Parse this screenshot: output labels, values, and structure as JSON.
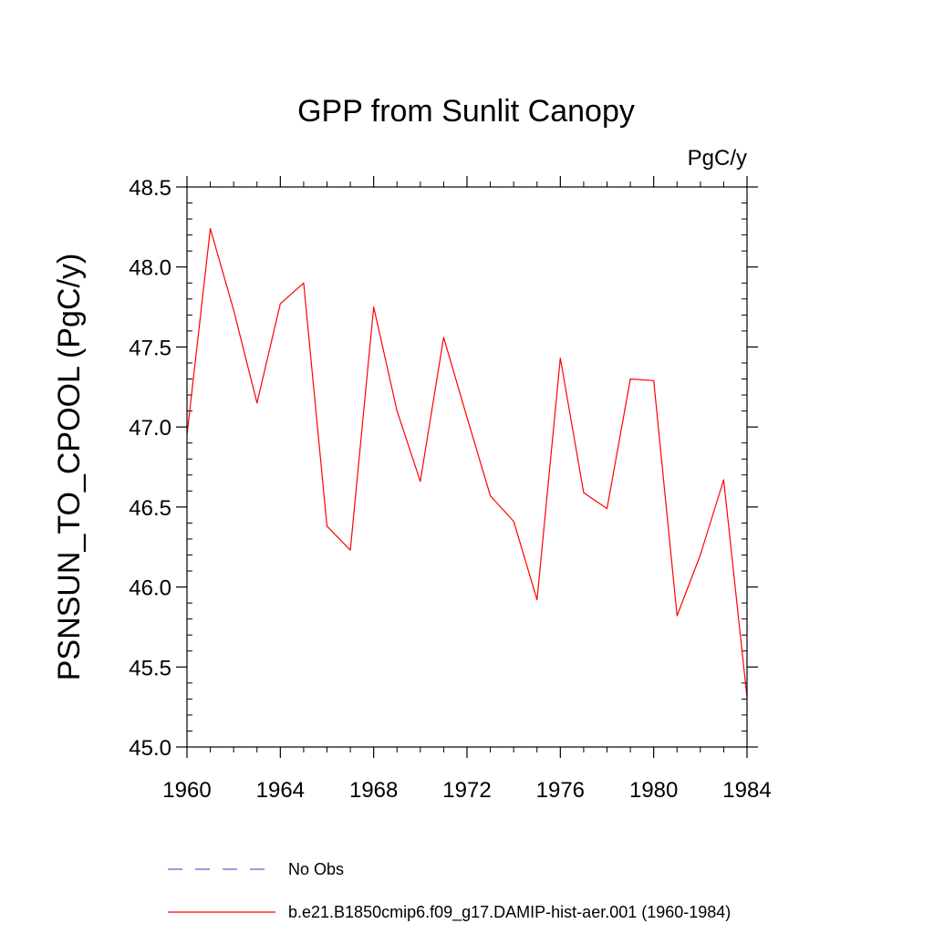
{
  "chart_data": {
    "type": "line",
    "title": "GPP from Sunlit Canopy",
    "units_label": "PgC/y",
    "ylabel": "PSNSUN_TO_CPOOL  (PgC/y)",
    "xlabel": "",
    "xlim": [
      1960,
      1984
    ],
    "ylim": [
      45.0,
      48.5
    ],
    "x_ticks": [
      1960,
      1964,
      1968,
      1972,
      1976,
      1980,
      1984
    ],
    "x_tick_labels": [
      "1960",
      "1964",
      "1968",
      "1972",
      "1976",
      "1980",
      "1984"
    ],
    "y_ticks": [
      45.0,
      45.5,
      46.0,
      46.5,
      47.0,
      47.5,
      48.0,
      48.5
    ],
    "y_tick_labels": [
      "45.0",
      "45.5",
      "46.0",
      "46.5",
      "47.0",
      "47.5",
      "48.0",
      "48.5"
    ],
    "grid": false,
    "legend_position": "bottom",
    "series": [
      {
        "name": "No Obs",
        "color": "#6a5acd",
        "dashed": true,
        "x": [],
        "values": []
      },
      {
        "name": "b.e21.B1850cmip6.f09_g17.DAMIP-hist-aer.001 (1960-1984)",
        "color": "#ff0000",
        "dashed": false,
        "x": [
          1960,
          1961,
          1962,
          1963,
          1964,
          1965,
          1966,
          1967,
          1968,
          1969,
          1970,
          1971,
          1972,
          1973,
          1974,
          1975,
          1976,
          1977,
          1978,
          1979,
          1980,
          1981,
          1982,
          1983,
          1984
        ],
        "values": [
          46.95,
          48.24,
          47.73,
          47.15,
          47.77,
          47.9,
          46.38,
          46.23,
          47.75,
          47.1,
          46.66,
          47.56,
          47.06,
          46.57,
          46.41,
          45.92,
          47.43,
          46.59,
          46.49,
          47.3,
          47.29,
          45.82,
          46.2,
          46.67,
          45.31
        ]
      }
    ]
  }
}
